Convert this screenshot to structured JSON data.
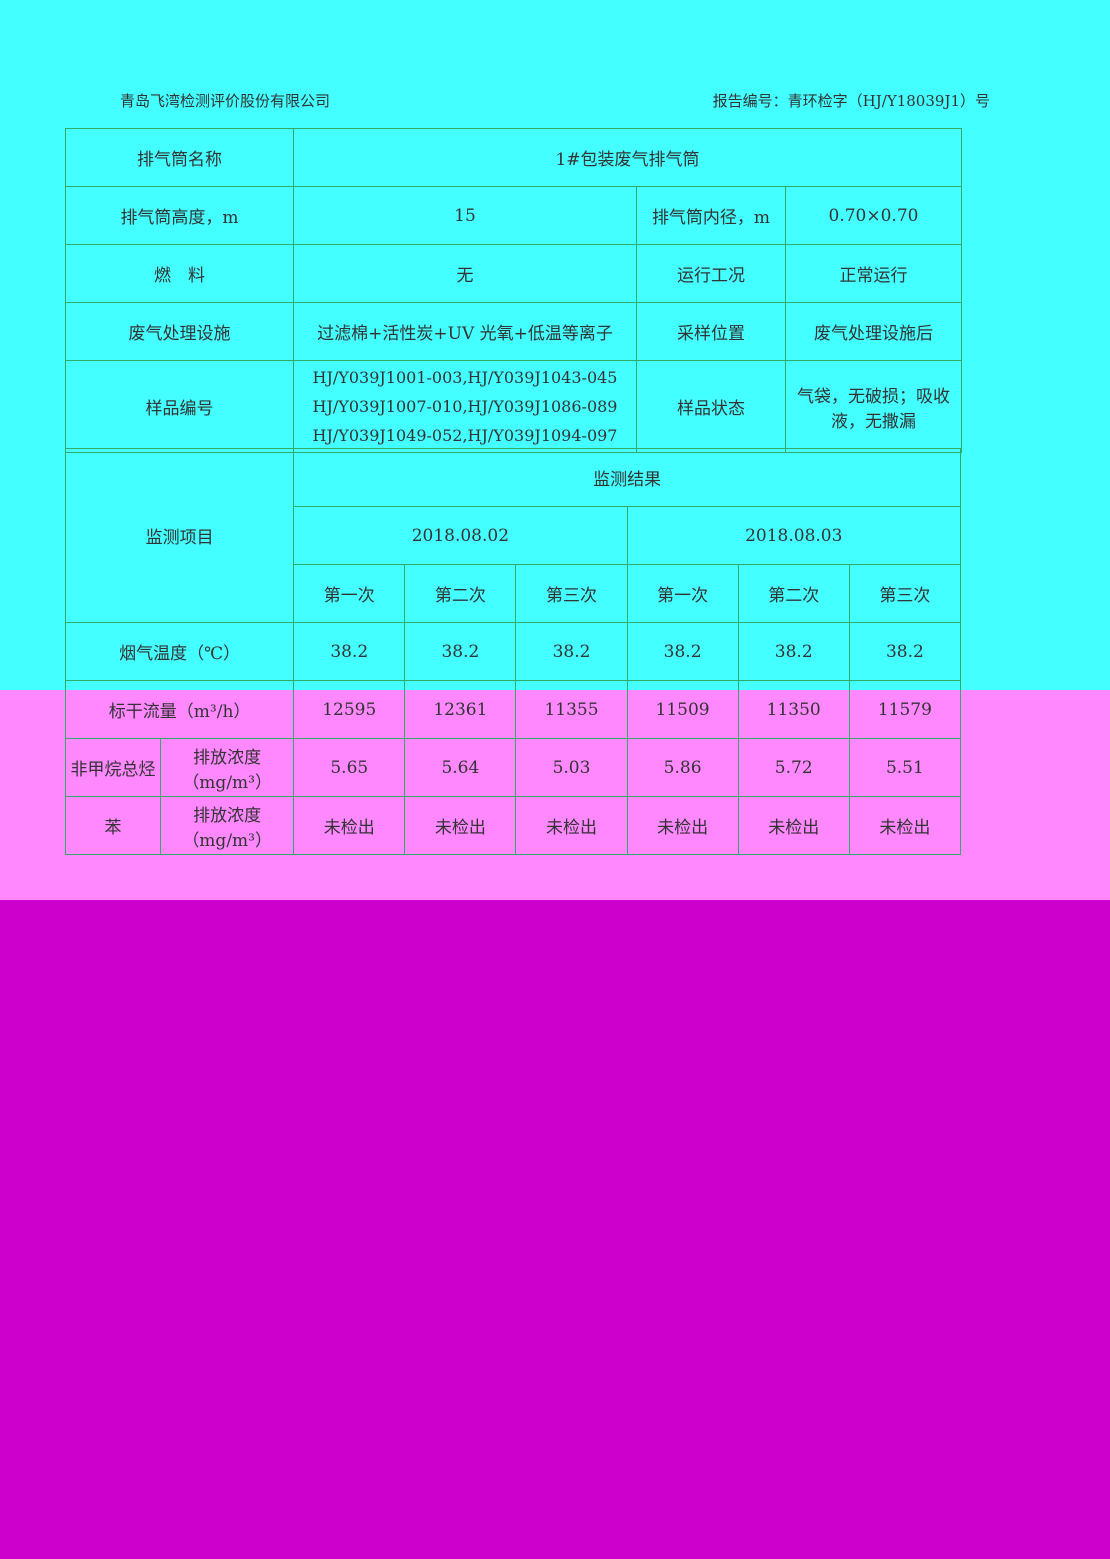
{
  "header": {
    "company": "青岛飞湾检测评价股份有限公司",
    "report_no": "报告编号：青环检字（HJ/Y18039J1）号"
  },
  "info_rows": [
    [
      "排气筒名称",
      "1#包装废气排气筒"
    ],
    [
      "排气筒高度，m",
      "15",
      "排气筒内径，m",
      "0.70×0.70"
    ],
    [
      "燃　料",
      "无",
      "运行工况",
      "正常运行"
    ],
    [
      "废气处理设施",
      "过滤棉+活性炭+UV 光氧+低温等离子",
      "采样位置",
      "废气处理设施后"
    ]
  ],
  "sample": {
    "label": "样品编号",
    "ids": [
      "HJ/Y039J1001-003,HJ/Y039J1043-045",
      "HJ/Y039J1007-010,HJ/Y039J1086-089",
      "HJ/Y039J1049-052,HJ/Y039J1094-097"
    ],
    "state_label": "样品状态",
    "state": "气袋，无破损；吸收液，无撒漏"
  },
  "results": {
    "item_label": "监测项目",
    "results_label": "监测结果",
    "dates": [
      "2018.08.02",
      "2018.08.03"
    ],
    "runs": [
      "第一次",
      "第二次",
      "第三次"
    ],
    "rows": [
      {
        "item": "烟气温度（℃）",
        "values": [
          "38.2",
          "38.2",
          "38.2",
          "38.2",
          "38.2",
          "38.2"
        ]
      },
      {
        "item": "标干流量（m³/h）",
        "values": [
          "12595",
          "12361",
          "11355",
          "11509",
          "11350",
          "11579"
        ]
      },
      {
        "group": "非甲烷总烃",
        "item": "排放浓度（mg/m³）",
        "values": [
          "5.65",
          "5.64",
          "5.03",
          "5.86",
          "5.72",
          "5.51"
        ]
      },
      {
        "group": "苯",
        "item": "排放浓度（mg/m³）",
        "values": [
          "未检出",
          "未检出",
          "未检出",
          "未检出",
          "未检出",
          "未检出"
        ]
      }
    ]
  }
}
